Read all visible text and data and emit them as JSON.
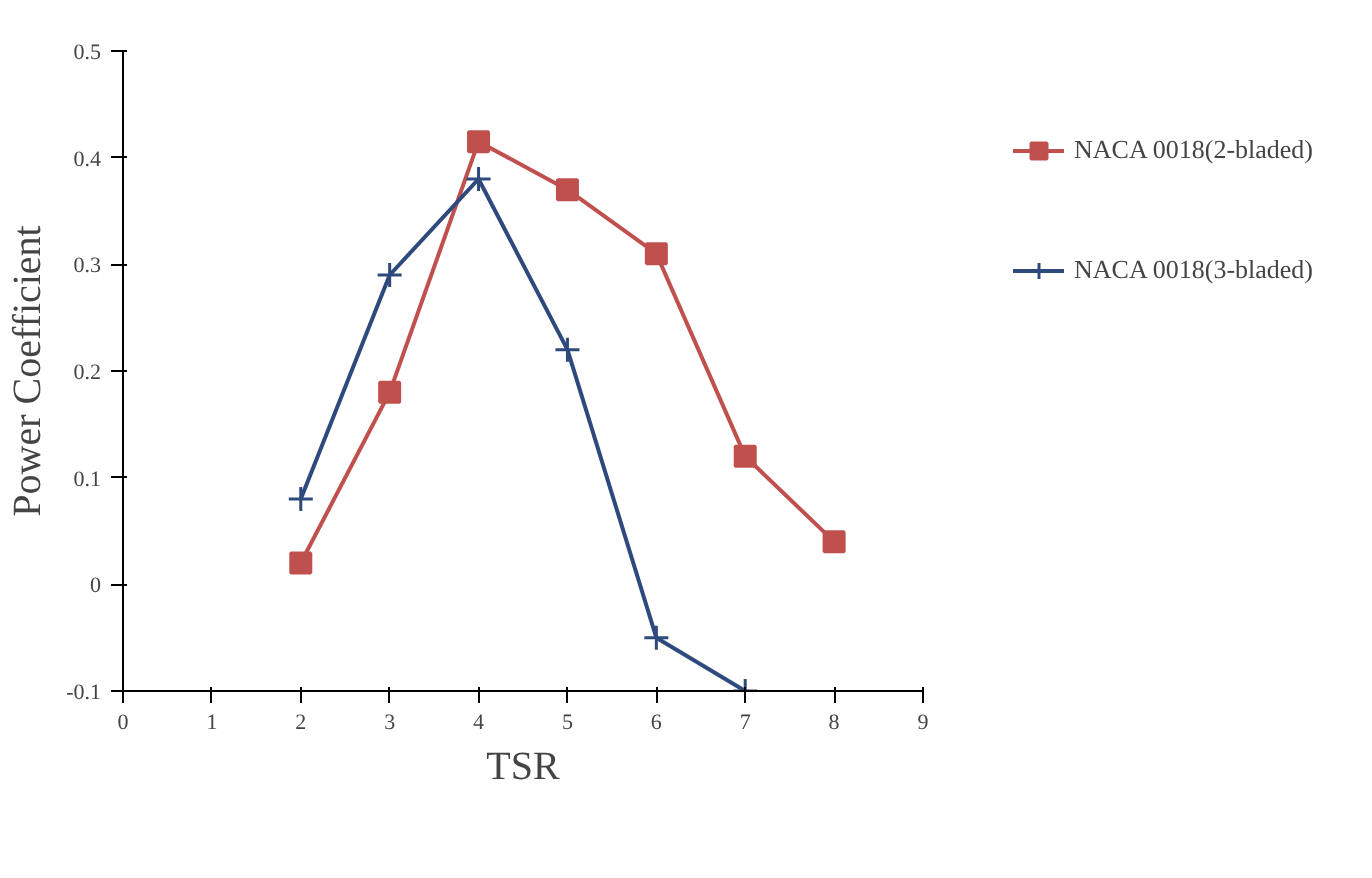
{
  "chart_data": {
    "type": "line",
    "xlabel": "TSR",
    "ylabel": "Power Coefficient",
    "xlim": [
      0,
      9
    ],
    "xticks": [
      0,
      1,
      2,
      3,
      4,
      5,
      6,
      7,
      8,
      9
    ],
    "ylim": [
      -0.1,
      0.5
    ],
    "yticks": [
      -0.1,
      0,
      0.1,
      0.2,
      0.3,
      0.4,
      0.5
    ],
    "grid": false,
    "legend": "right",
    "line_style": "solid",
    "series": [
      {
        "name": "NACA 0018(2-bladed)",
        "color": "#c0504d",
        "marker": "square",
        "x": [
          2,
          3,
          4,
          5,
          6,
          7,
          8
        ],
        "values": [
          0.02,
          0.18,
          0.415,
          0.37,
          0.31,
          0.12,
          0.04
        ]
      },
      {
        "name": "NACA 0018(3-bladed)",
        "color": "#2e4a7d",
        "marker": "cross",
        "x": [
          2,
          3,
          4,
          5,
          6,
          7
        ],
        "values": [
          0.08,
          0.29,
          0.38,
          0.22,
          -0.05,
          -0.1
        ]
      }
    ]
  }
}
